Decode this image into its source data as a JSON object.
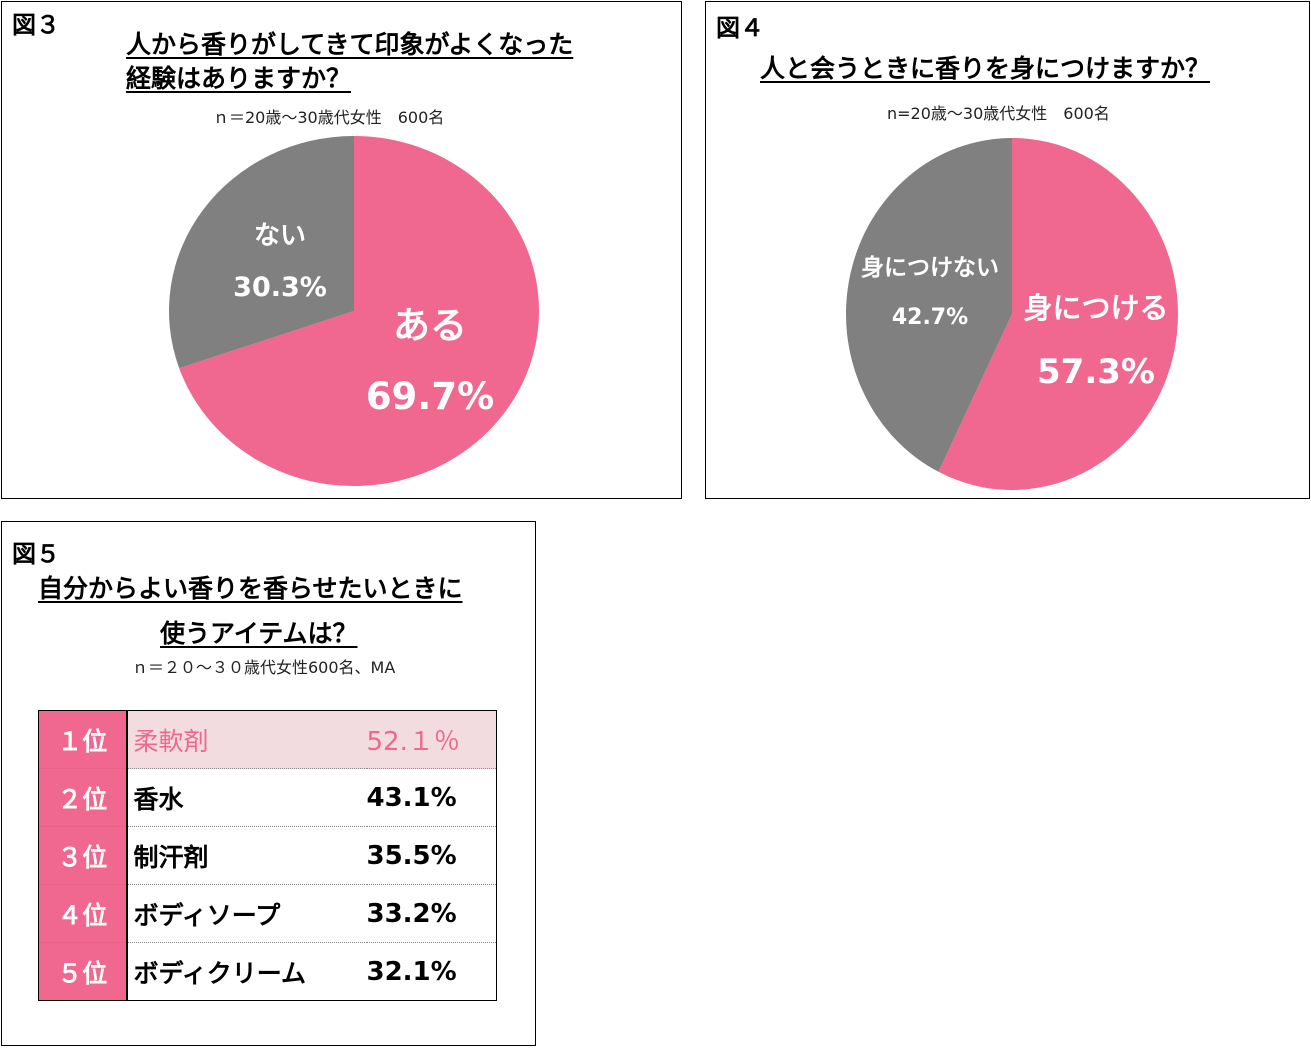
{
  "figures": {
    "fig3": {
      "label": "図３",
      "title_line1": "人から香りがしてきて印象がよくなった",
      "title_line2": "経験はありますか？",
      "subtitle": "ｎ＝20歳～30歳代女性　600名"
    },
    "fig4": {
      "label": "図４",
      "title": "人と会うときに香りを身につけますか？",
      "subtitle": "n=20歳～30歳代女性　600名"
    },
    "fig5": {
      "label": "図５",
      "title_line1": "自分からよい香りを香らせたいときに",
      "title_line2": "使うアイテムは？",
      "subtitle": "ｎ＝２０～３０歳代女性600名、MA"
    }
  },
  "colors": {
    "pink": "#f0678f",
    "gray": "#808080",
    "highlight": "#f2dcdf"
  },
  "chart_data": [
    {
      "type": "pie",
      "title": "人から香りがしてきて印象がよくなった経験はありますか？",
      "slices": [
        {
          "label": "ある",
          "value": 69.7,
          "value_label": "69.7%",
          "color": "#f0678f"
        },
        {
          "label": "ない",
          "value": 30.3,
          "value_label": "30.3%",
          "color": "#808080"
        }
      ]
    },
    {
      "type": "pie",
      "title": "人と会うときに香りを身につけますか？",
      "slices": [
        {
          "label": "身につける",
          "value": 57.3,
          "value_label": "57.3%",
          "color": "#f0678f"
        },
        {
          "label": "身につけない",
          "value": 42.7,
          "value_label": "42.7%",
          "color": "#808080"
        }
      ]
    },
    {
      "type": "table",
      "title": "自分からよい香りを香らせたいときに使うアイテムは？",
      "rows": [
        {
          "rank": "１位",
          "item": "柔軟剤",
          "value": 52.1,
          "value_label": "52.１％"
        },
        {
          "rank": "２位",
          "item": "香水",
          "value": 43.1,
          "value_label": "43.1%"
        },
        {
          "rank": "３位",
          "item": "制汗剤",
          "value": 35.5,
          "value_label": "35.5%"
        },
        {
          "rank": "４位",
          "item": "ボディソープ",
          "value": 33.2,
          "value_label": "33.2%"
        },
        {
          "rank": "５位",
          "item": "ボディクリーム",
          "value": 32.1,
          "value_label": "32.1%"
        }
      ]
    }
  ]
}
